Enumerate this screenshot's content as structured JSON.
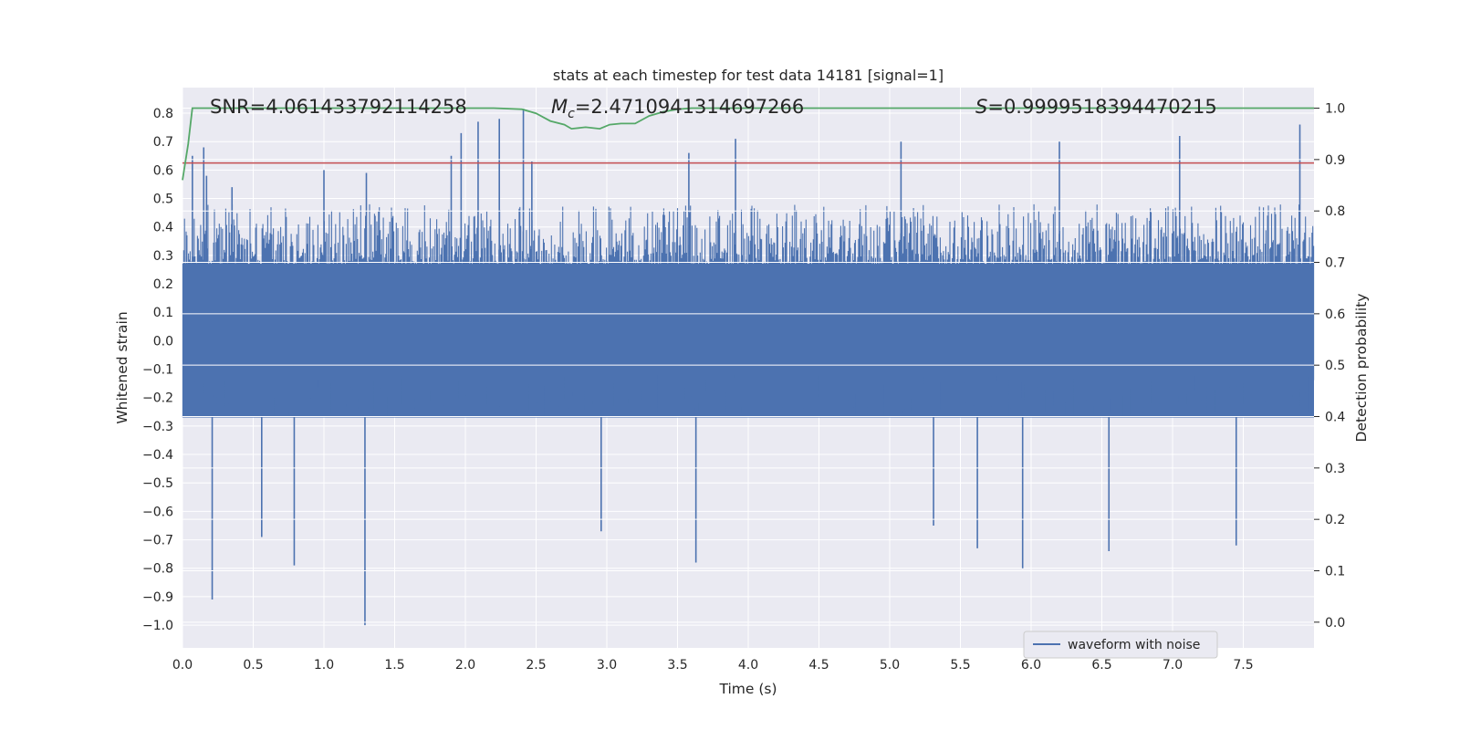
{
  "chart_data": {
    "type": "line",
    "title": "stats at each timestep for test data 14181 [signal=1]",
    "xlabel": "Time (s)",
    "ylabel": "Whitened strain",
    "y2label": "Detection probability",
    "xlim": [
      0.0,
      8.0
    ],
    "ylim": [
      -1.08,
      0.89
    ],
    "y2lim": [
      -0.05,
      1.04
    ],
    "x_ticks": [
      "0.0",
      "0.5",
      "1.0",
      "1.5",
      "2.0",
      "2.5",
      "3.0",
      "3.5",
      "4.0",
      "4.5",
      "5.0",
      "5.5",
      "6.0",
      "6.5",
      "7.0",
      "7.5"
    ],
    "y_ticks": [
      "0.8",
      "0.7",
      "0.6",
      "0.5",
      "0.4",
      "0.3",
      "0.2",
      "0.1",
      "0.0",
      "−0.1",
      "−0.2",
      "−0.3",
      "−0.4",
      "−0.5",
      "−0.6",
      "−0.7",
      "−0.8",
      "−0.9",
      "−1.0"
    ],
    "y_tick_values": [
      0.8,
      0.7,
      0.6,
      0.5,
      0.4,
      0.3,
      0.2,
      0.1,
      0.0,
      -0.1,
      -0.2,
      -0.3,
      -0.4,
      -0.5,
      -0.6,
      -0.7,
      -0.8,
      -0.9,
      -1.0
    ],
    "y2_ticks": [
      "1.0",
      "0.9",
      "0.8",
      "0.7",
      "0.6",
      "0.5",
      "0.4",
      "0.3",
      "0.2",
      "0.1",
      "0.0"
    ],
    "y2_tick_values": [
      1.0,
      0.9,
      0.8,
      0.7,
      0.6,
      0.5,
      0.4,
      0.3,
      0.2,
      0.1,
      0.0
    ],
    "annotations": {
      "snr": "SNR=4.061433792114258",
      "mc_prefix": "M",
      "mc_sub": "c",
      "mc_value": "=2.4710941314697266",
      "s_prefix": "S",
      "s_value": "=0.9999518394470215"
    },
    "series": [
      {
        "name": "waveform with noise",
        "axis": "left",
        "style": "dense-noise",
        "envelope_typical": [
          -0.45,
          0.45
        ],
        "peaks": [
          {
            "x": 0.07,
            "y": 0.65
          },
          {
            "x": 0.17,
            "y": 0.58
          },
          {
            "x": 0.15,
            "y": 0.68
          },
          {
            "x": 0.21,
            "y": -0.91
          },
          {
            "x": 0.35,
            "y": 0.54
          },
          {
            "x": 0.56,
            "y": -0.69
          },
          {
            "x": 0.79,
            "y": -0.79
          },
          {
            "x": 1.0,
            "y": 0.6
          },
          {
            "x": 1.29,
            "y": -1.0
          },
          {
            "x": 1.3,
            "y": 0.59
          },
          {
            "x": 1.9,
            "y": 0.65
          },
          {
            "x": 1.97,
            "y": 0.73
          },
          {
            "x": 2.09,
            "y": 0.77
          },
          {
            "x": 2.24,
            "y": 0.78
          },
          {
            "x": 2.41,
            "y": 0.82
          },
          {
            "x": 2.47,
            "y": 0.63
          },
          {
            "x": 2.96,
            "y": -0.67
          },
          {
            "x": 3.58,
            "y": 0.66
          },
          {
            "x": 3.63,
            "y": -0.78
          },
          {
            "x": 3.91,
            "y": 0.71
          },
          {
            "x": 5.08,
            "y": 0.7
          },
          {
            "x": 5.31,
            "y": -0.65
          },
          {
            "x": 5.62,
            "y": -0.73
          },
          {
            "x": 5.94,
            "y": -0.8
          },
          {
            "x": 6.2,
            "y": 0.7
          },
          {
            "x": 6.55,
            "y": -0.74
          },
          {
            "x": 7.05,
            "y": 0.72
          },
          {
            "x": 7.45,
            "y": -0.72
          },
          {
            "x": 7.9,
            "y": 0.76
          }
        ]
      },
      {
        "name": "",
        "axis": "right",
        "style": "line",
        "color": "#55a868",
        "x": [
          0.0,
          0.04,
          0.07,
          0.1,
          0.2,
          0.5,
          1.0,
          1.5,
          2.0,
          2.2,
          2.4,
          2.5,
          2.6,
          2.7,
          2.75,
          2.85,
          2.95,
          3.02,
          3.1,
          3.2,
          3.3,
          3.4,
          3.5,
          3.6,
          4.0,
          5.0,
          6.0,
          7.0,
          8.0
        ],
        "y": [
          0.86,
          0.93,
          1.0,
          1.0,
          1.0,
          1.0,
          1.0,
          1.0,
          1.0,
          1.0,
          0.998,
          0.99,
          0.975,
          0.968,
          0.96,
          0.963,
          0.96,
          0.968,
          0.97,
          0.97,
          0.985,
          0.993,
          0.998,
          1.0,
          1.0,
          1.0,
          1.0,
          1.0,
          1.0
        ]
      },
      {
        "name": "",
        "axis": "left",
        "style": "hline",
        "color": "#c44e52",
        "y": 0.625
      }
    ],
    "grid": true,
    "legend": "lower-right",
    "colors": {
      "plot_background": "#eaeaf2",
      "grid": "#ffffff",
      "waveform": "#4c72b0",
      "probability": "#55a868",
      "threshold": "#c44e52"
    }
  }
}
